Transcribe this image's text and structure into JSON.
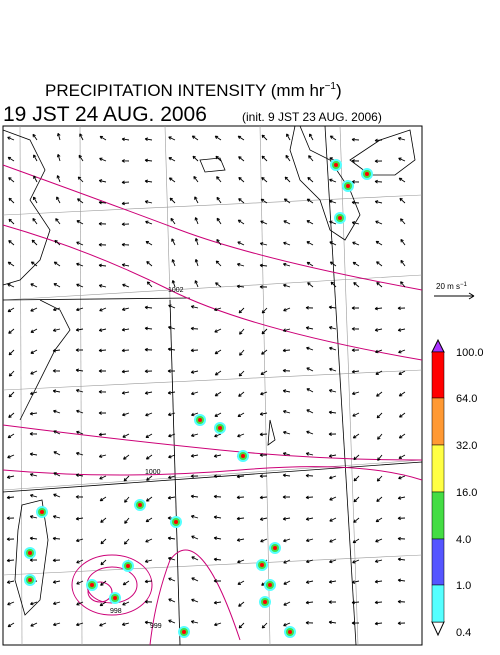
{
  "header": {
    "title": "PRECIPITATION INTENSITY (mm hr",
    "title_exponent": "−1",
    "title_close": ")",
    "valid_time": "19 JST 24 AUG. 2006",
    "init_time": "(init. 9 JST 23 AUG. 2006)"
  },
  "vector_legend": {
    "label": "20 m s",
    "exponent": "−1"
  },
  "colorbar": {
    "labels": [
      "100.0",
      "64.0",
      "32.0",
      "16.0",
      "4.0",
      "1.0",
      "0.4"
    ],
    "colors": [
      "#ff0000",
      "#ff9933",
      "#ffff44",
      "#44dd44",
      "#5555ff",
      "#55ffff"
    ]
  },
  "contour_labels": [
    "1002",
    "1000",
    "998",
    "999"
  ]
}
